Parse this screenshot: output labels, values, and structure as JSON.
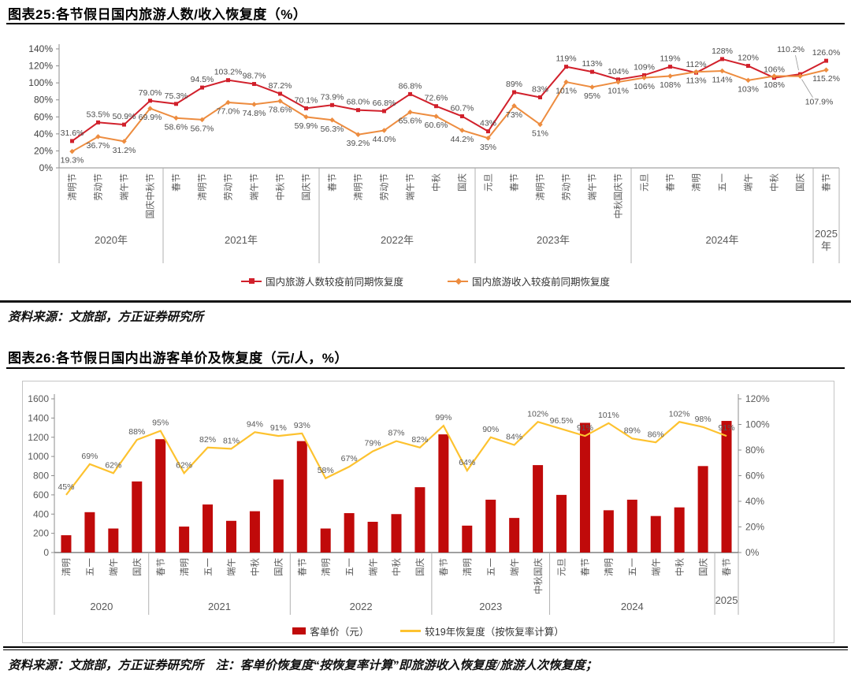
{
  "page": {
    "fig25": {
      "title": "图表25:各节假日国内旅游人数/收入恢复度（%）",
      "source": "资料来源：文旅部，方正证券研究所"
    },
    "fig26": {
      "title": "图表26:各节假日国内出游客单价及恢复度（元/人，%）",
      "source_note": "资料来源：文旅部，方正证券研究所　注：客单价恢复度“按恢复率计算”即旅游收入恢复度/旅游人次恢复度；"
    }
  },
  "colors": {
    "line_red": "#d1202b",
    "line_orange": "#ed8c3f",
    "bar_red": "#c00a0a",
    "line_yellow": "#fdc22f",
    "label_gray": "#4d4d4d",
    "axis_gray": "#404040"
  },
  "chart_data": [
    {
      "type": "line",
      "title": "各节假日国内旅游人数/收入恢复度（%）",
      "ylim": [
        0,
        140
      ],
      "yticks": [
        "0%",
        "20%",
        "40%",
        "60%",
        "80%",
        "100%",
        "120%",
        "140%"
      ],
      "grid": false,
      "legend_position": "bottom",
      "groups": [
        {
          "year": "2020年",
          "categories": [
            "清明节",
            "劳动节",
            "端午节",
            "国庆中秋节"
          ]
        },
        {
          "year": "2021年",
          "categories": [
            "春节",
            "清明节",
            "劳动节",
            "端午节",
            "中秋节",
            "国庆节"
          ]
        },
        {
          "year": "2022年",
          "categories": [
            "春节",
            "清明节",
            "劳动节",
            "端午节",
            "中秋",
            "国庆"
          ]
        },
        {
          "year": "2023年",
          "categories": [
            "元旦",
            "春节",
            "清明节",
            "劳动节",
            "端午节",
            "中秋国庆节"
          ]
        },
        {
          "year": "2024年",
          "categories": [
            "元旦",
            "春节",
            "清明",
            "五一",
            "端午",
            "中秋",
            "国庆"
          ]
        },
        {
          "year": "2025年",
          "categories": [
            "春节"
          ]
        }
      ],
      "series": [
        {
          "name": "国内旅游人数较疫前同期恢复度",
          "color": "#d1202b",
          "marker": "square",
          "values": [
            31.6,
            53.5,
            50.9,
            79.0,
            75.3,
            94.5,
            103.2,
            98.7,
            87.2,
            70.1,
            73.9,
            68.0,
            66.8,
            86.8,
            72.6,
            60.7,
            43,
            89,
            83,
            119,
            113,
            104,
            109,
            119,
            112,
            128,
            120,
            106,
            110.2,
            126.0
          ],
          "labels": [
            "31.6%",
            "53.5%",
            "50.9%",
            "79.0%",
            "75.3%",
            "94.5%",
            "103.2%",
            "98.7%",
            "87.2%",
            "70.1%",
            "73.9%",
            "68.0%",
            "66.8%",
            "86.8%",
            "72.6%",
            "60.7%",
            "43%",
            "89%",
            "83%",
            "119%",
            "113%",
            "104%",
            "109%",
            "119%",
            "112%",
            "128%",
            "120%",
            "106%",
            "110.2%",
            "126.0%"
          ]
        },
        {
          "name": "国内旅游收入较疫前同期恢复度",
          "color": "#ed8c3f",
          "marker": "diamond",
          "values": [
            19.3,
            36.7,
            31.2,
            69.9,
            58.6,
            56.7,
            77.0,
            74.8,
            78.6,
            59.9,
            56.3,
            39.2,
            44.0,
            65.6,
            60.6,
            44.2,
            35,
            73,
            51,
            101,
            95,
            101,
            106,
            108,
            113,
            114,
            103,
            108,
            107.9,
            115.2
          ],
          "labels": [
            "19.3%",
            "36.7%",
            "31.2%",
            "69.9%",
            "58.6%",
            "56.7%",
            "77.0%",
            "74.8%",
            "78.6%",
            "59.9%",
            "56.3%",
            "39.2%",
            "44.0%",
            "65.6%",
            "60.6%",
            "44.2%",
            "35%",
            "73%",
            "51%",
            "101%",
            "95%",
            "101%",
            "106%",
            "108%",
            "113%",
            "114%",
            "103%",
            "108%",
            "107.9%",
            "115.2%"
          ]
        }
      ]
    },
    {
      "type": "bar+line",
      "title": "各节假日国内出游客单价及恢复度（元/人，%）",
      "left_ylim": [
        0,
        1600
      ],
      "left_ticks": [
        "0",
        "200",
        "400",
        "600",
        "800",
        "1000",
        "1200",
        "1400",
        "1600"
      ],
      "right_ylim": [
        0,
        120
      ],
      "right_ticks": [
        "0%",
        "20%",
        "40%",
        "60%",
        "80%",
        "100%",
        "120%"
      ],
      "grid": false,
      "legend_position": "bottom",
      "groups": [
        {
          "year": "2020",
          "categories": [
            "清明",
            "五一",
            "端午",
            "国庆"
          ]
        },
        {
          "year": "2021",
          "categories": [
            "春节",
            "清明",
            "五一",
            "端午",
            "中秋",
            "国庆"
          ]
        },
        {
          "year": "2022",
          "categories": [
            "春节",
            "清明",
            "五一",
            "端午",
            "中秋",
            "国庆"
          ]
        },
        {
          "year": "2023",
          "categories": [
            "春节",
            "清明",
            "五一",
            "端午",
            "中秋国庆"
          ]
        },
        {
          "year": "2024",
          "categories": [
            "元旦",
            "春节",
            "清明",
            "五一",
            "端午",
            "中秋",
            "国庆"
          ]
        },
        {
          "year": "2025",
          "categories": [
            "春节"
          ]
        }
      ],
      "bar_series": {
        "name": "客单价（元）",
        "color": "#c00a0a",
        "axis": "left",
        "values": [
          180,
          420,
          250,
          740,
          1180,
          270,
          500,
          330,
          430,
          760,
          1160,
          250,
          410,
          320,
          400,
          680,
          1230,
          280,
          550,
          360,
          910,
          600,
          1350,
          440,
          550,
          380,
          470,
          900,
          1370
        ]
      },
      "line_series": {
        "name": "较19年恢复度（按恢复率计算）",
        "color": "#fdc22f",
        "axis": "right",
        "values": [
          45,
          69,
          62,
          88,
          95,
          62,
          82,
          81,
          94,
          91,
          93,
          58,
          67,
          79,
          87,
          82,
          99,
          64,
          90,
          84,
          102,
          96.5,
          91,
          101,
          89,
          86,
          102,
          98,
          91
        ],
        "labels": [
          "45%",
          "69%",
          "62%",
          "88%",
          "95%",
          "62%",
          "82%",
          "81%",
          "94%",
          "91%",
          "93%",
          "58%",
          "67%",
          "79%",
          "87%",
          "82%",
          "99%",
          "64%",
          "90%",
          "84%",
          "102%",
          "96.5%",
          "91%",
          "101%",
          "89%",
          "86%",
          "102%",
          "98%",
          "91%"
        ]
      }
    }
  ]
}
